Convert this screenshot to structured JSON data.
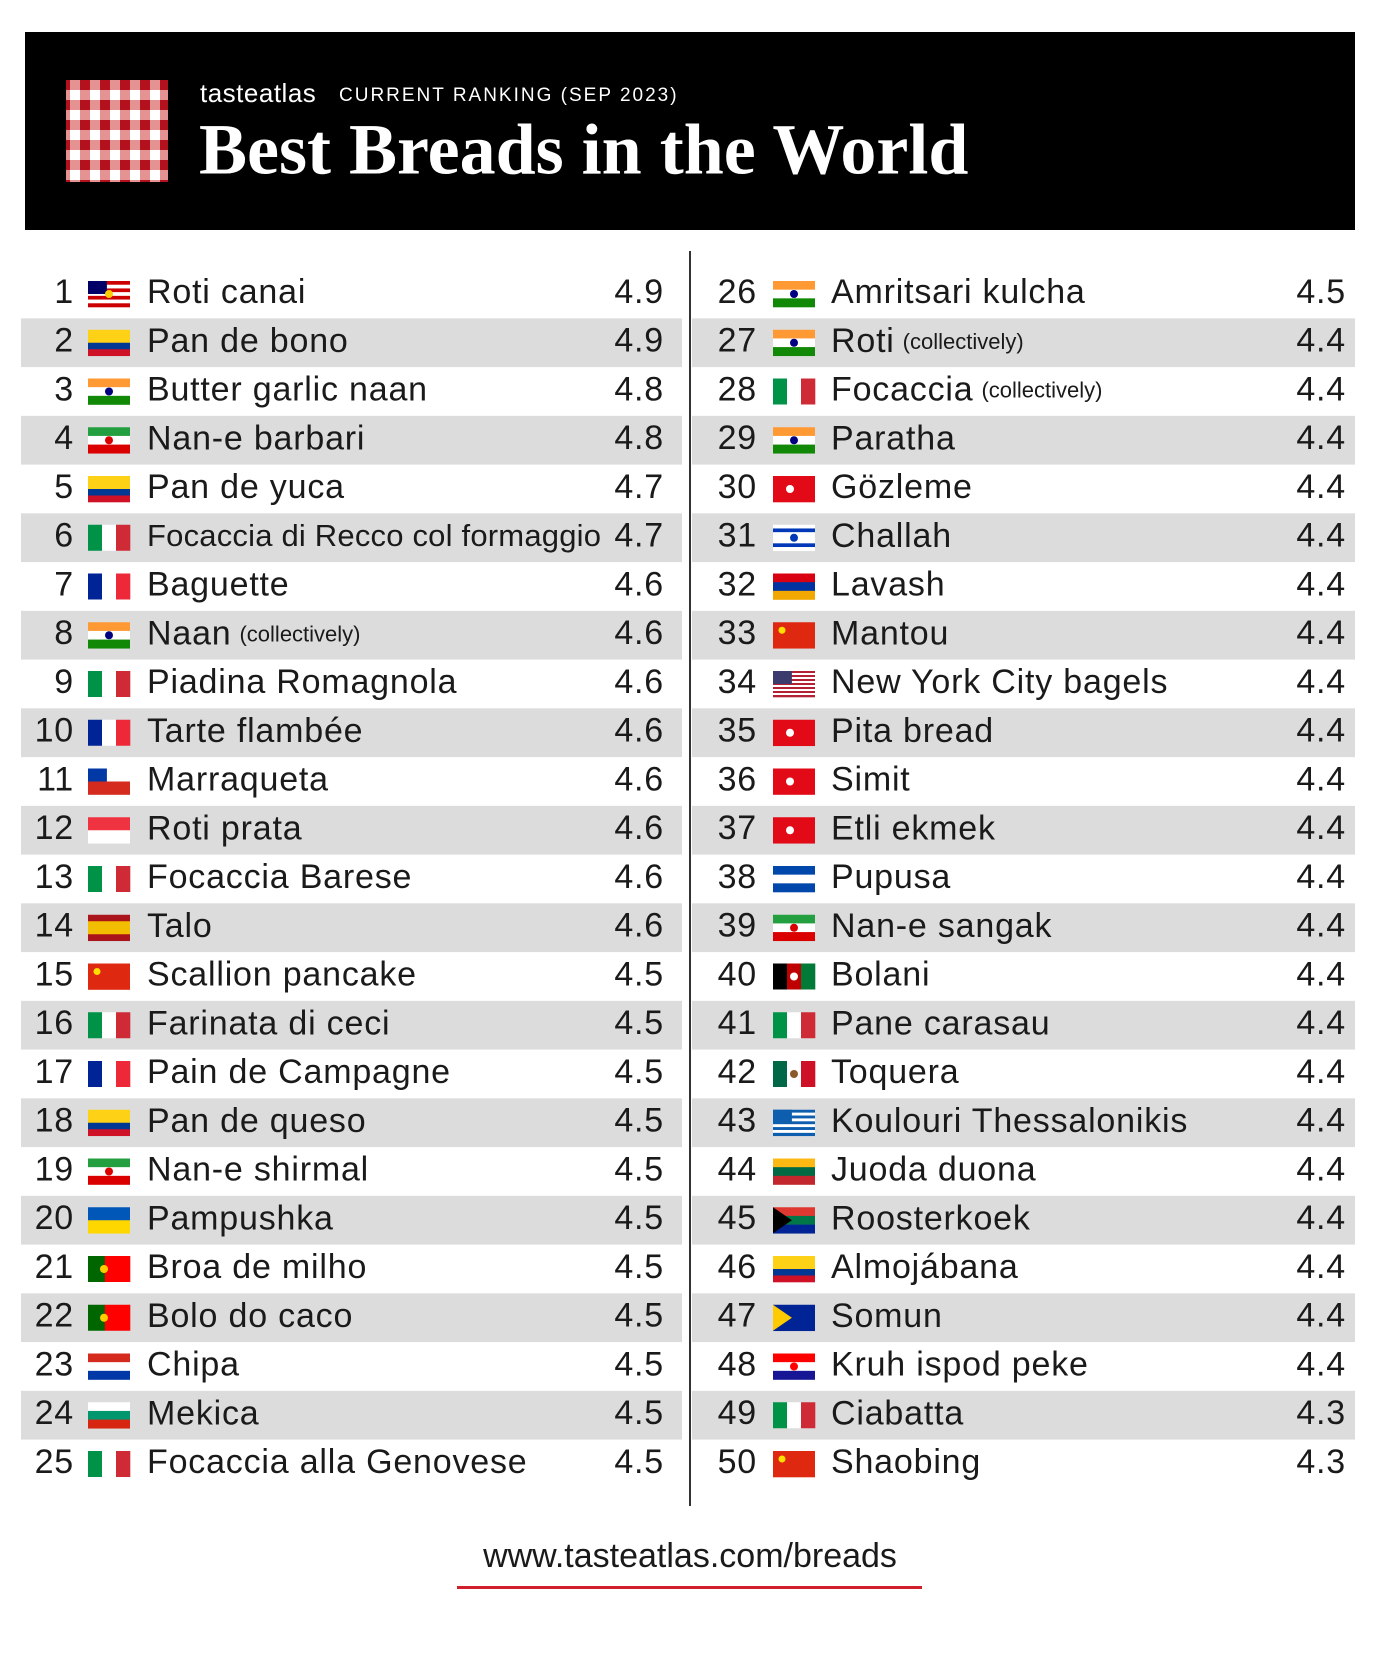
{
  "header": {
    "brand": "tasteatlas",
    "subtitle": "CURRENT RANKING (SEP 2023)",
    "title": "Best Breads in the World"
  },
  "table": {
    "rows": [
      {
        "rank": 1,
        "name": "Roti canai",
        "score": 4.9
      },
      {
        "rank": 2,
        "name": "Pan de bono",
        "score": 4.9
      },
      {
        "rank": 3,
        "name": "Butter garlic naan",
        "score": 4.8
      },
      {
        "rank": 4,
        "name": "Nan-e barbari",
        "score": 4.8
      },
      {
        "rank": 5,
        "name": "Pan de yuca",
        "score": 4.7
      },
      {
        "rank": 6,
        "name": "Focaccia di Recco col formaggio",
        "score": 4.7
      },
      {
        "rank": 7,
        "name": "Baguette",
        "score": 4.6
      },
      {
        "rank": 8,
        "name": "Naan",
        "note": "(collectively)",
        "score": 4.6
      },
      {
        "rank": 9,
        "name": "Piadina Romagnola",
        "score": 4.6
      },
      {
        "rank": 10,
        "name": "Tarte flambée",
        "score": 4.6
      },
      {
        "rank": 11,
        "name": "Marraqueta",
        "score": 4.6
      },
      {
        "rank": 12,
        "name": "Roti prata",
        "score": 4.6
      },
      {
        "rank": 13,
        "name": "Focaccia Barese",
        "score": 4.6
      },
      {
        "rank": 14,
        "name": "Talo",
        "score": 4.6
      },
      {
        "rank": 15,
        "name": "Scallion pancake",
        "score": 4.5
      },
      {
        "rank": 16,
        "name": "Farinata di ceci",
        "score": 4.5
      },
      {
        "rank": 17,
        "name": "Pain de Campagne",
        "score": 4.5
      },
      {
        "rank": 18,
        "name": "Pan de queso",
        "score": 4.5
      },
      {
        "rank": 19,
        "name": "Nan-e shirmal",
        "score": 4.5
      },
      {
        "rank": 20,
        "name": "Pampushka",
        "score": 4.5
      },
      {
        "rank": 21,
        "name": "Broa de milho",
        "score": 4.5
      },
      {
        "rank": 22,
        "name": "Bolo do caco",
        "score": 4.5
      },
      {
        "rank": 23,
        "name": "Chipa",
        "score": 4.5
      },
      {
        "rank": 24,
        "name": "Mekica",
        "score": 4.5
      },
      {
        "rank": 25,
        "name": "Focaccia alla Genovese",
        "score": 4.5
      },
      {
        "rank": 26,
        "name": "Amritsari kulcha",
        "score": 4.5
      },
      {
        "rank": 27,
        "name": "Roti",
        "note": "(collectively)",
        "score": 4.4
      },
      {
        "rank": 28,
        "name": "Focaccia",
        "note": "(collectively)",
        "score": 4.4
      },
      {
        "rank": 29,
        "name": "Paratha",
        "score": 4.4
      },
      {
        "rank": 30,
        "name": "Gözleme",
        "score": 4.4
      },
      {
        "rank": 31,
        "name": "Challah",
        "score": 4.4
      },
      {
        "rank": 32,
        "name": "Lavash",
        "score": 4.4
      },
      {
        "rank": 33,
        "name": "Mantou",
        "score": 4.4
      },
      {
        "rank": 34,
        "name": "New York City bagels",
        "score": 4.4
      },
      {
        "rank": 35,
        "name": "Pita bread",
        "score": 4.4
      },
      {
        "rank": 36,
        "name": "Simit",
        "score": 4.4
      },
      {
        "rank": 37,
        "name": "Etli ekmek",
        "score": 4.4
      },
      {
        "rank": 38,
        "name": "Pupusa",
        "score": 4.4
      },
      {
        "rank": 39,
        "name": "Nan-e sangak",
        "score": 4.4
      },
      {
        "rank": 40,
        "name": "Bolani",
        "score": 4.4
      },
      {
        "rank": 41,
        "name": "Pane carasau",
        "score": 4.4
      },
      {
        "rank": 42,
        "name": "Toquera",
        "score": 4.4
      },
      {
        "rank": 43,
        "name": "Koulouri Thessalonikis",
        "score": 4.4
      },
      {
        "rank": 44,
        "name": "Juoda duona",
        "score": 4.4
      },
      {
        "rank": 45,
        "name": "Roosterkoek",
        "score": 4.4
      },
      {
        "rank": 46,
        "name": "Almojábana",
        "score": 4.4
      },
      {
        "rank": 47,
        "name": "Somun",
        "score": 4.4
      },
      {
        "rank": 48,
        "name": "Kruh ispod peke",
        "score": 4.4
      },
      {
        "rank": 49,
        "name": "Ciabatta",
        "score": 4.3
      },
      {
        "rank": 50,
        "name": "Shaobing",
        "score": 4.3
      }
    ]
  },
  "footer": {
    "url": "www.tasteatlas.com/breads"
  }
}
